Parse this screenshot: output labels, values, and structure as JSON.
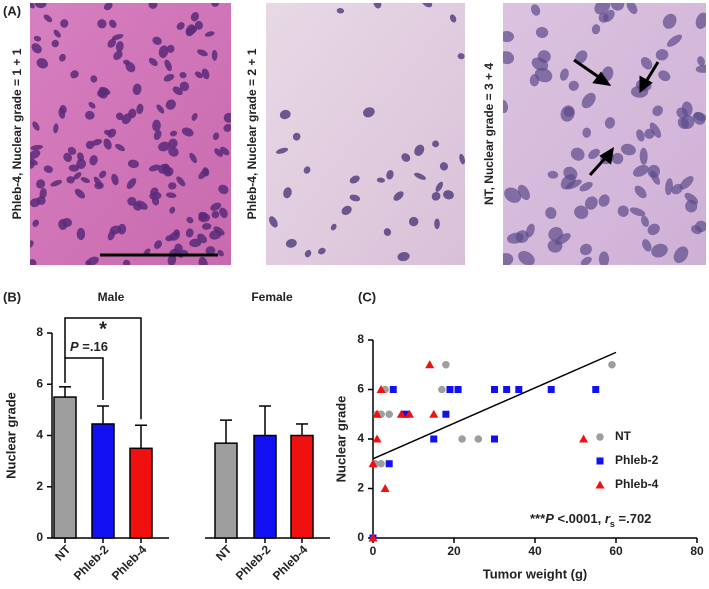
{
  "panel_a": {
    "label": "(A)",
    "images": [
      {
        "label": "Phleb-4, Nuclear grade = 1 + 1"
      },
      {
        "label": "Phleb-4, Nuclear grade = 2 + 1"
      },
      {
        "label": "NT, Nuclear grade = 3 + 4"
      }
    ]
  },
  "chart_data": [
    {
      "type": "bar",
      "label": "(B)",
      "groups": [
        "Male",
        "Female"
      ],
      "categories": [
        "NT",
        "Phleb-2",
        "Phleb-4",
        "NT",
        "Phleb-2",
        "Phleb-4"
      ],
      "values": [
        5.5,
        4.45,
        3.5,
        3.7,
        4.0,
        4.0
      ],
      "errors": [
        0.4,
        0.7,
        0.9,
        0.9,
        1.15,
        0.45
      ],
      "colors": [
        "#9e9e9e",
        "#1010f0",
        "#f01010",
        "#9e9e9e",
        "#1010f0",
        "#f01010"
      ],
      "ylabel": "Nuclear grade",
      "ylim": [
        0,
        8
      ],
      "yticks": [
        0,
        2,
        4,
        6,
        8
      ],
      "annotations": [
        [
          "P",
          " =.16"
        ],
        [
          "*"
        ]
      ]
    },
    {
      "type": "scatter",
      "label": "(C)",
      "xlabel": "Tumor weight (g)",
      "ylabel": "Nuclear grade",
      "xlim": [
        0,
        80
      ],
      "xticks": [
        0,
        20,
        40,
        60,
        80
      ],
      "ylim": [
        0,
        8
      ],
      "yticks": [
        0,
        2,
        4,
        6,
        8
      ],
      "legend": "right",
      "series": [
        {
          "name": "NT",
          "color": "#9e9e9e",
          "marker": "circle",
          "x": [
            0.5,
            2,
            2,
            3,
            4,
            18,
            17,
            21,
            22,
            26,
            59,
            8,
            1
          ],
          "values": [
            3,
            3,
            5,
            6,
            5,
            7,
            6,
            6,
            4,
            4,
            7,
            5,
            5
          ]
        },
        {
          "name": "Phleb-2",
          "color": "#1010f0",
          "marker": "square",
          "x": [
            0,
            4,
            5,
            15,
            18,
            19,
            21,
            30,
            30,
            33,
            36,
            44,
            55,
            8
          ],
          "values": [
            0,
            3,
            6,
            4,
            5,
            6,
            6,
            4,
            6,
            6,
            6,
            6,
            6,
            5
          ]
        },
        {
          "name": "Phleb-4",
          "color": "#f01010",
          "marker": "triangle",
          "x": [
            0,
            0,
            1,
            1,
            2,
            3,
            7,
            9,
            14,
            15,
            52
          ],
          "values": [
            0,
            3,
            4,
            5,
            6,
            2,
            5,
            5,
            7,
            5,
            4
          ]
        }
      ],
      "fit_line": {
        "x": [
          0,
          60
        ],
        "y": [
          3.2,
          7.5
        ]
      },
      "annotation": [
        "***",
        "P",
        " <.0001, ",
        "r",
        "s",
        " =.702"
      ]
    }
  ]
}
